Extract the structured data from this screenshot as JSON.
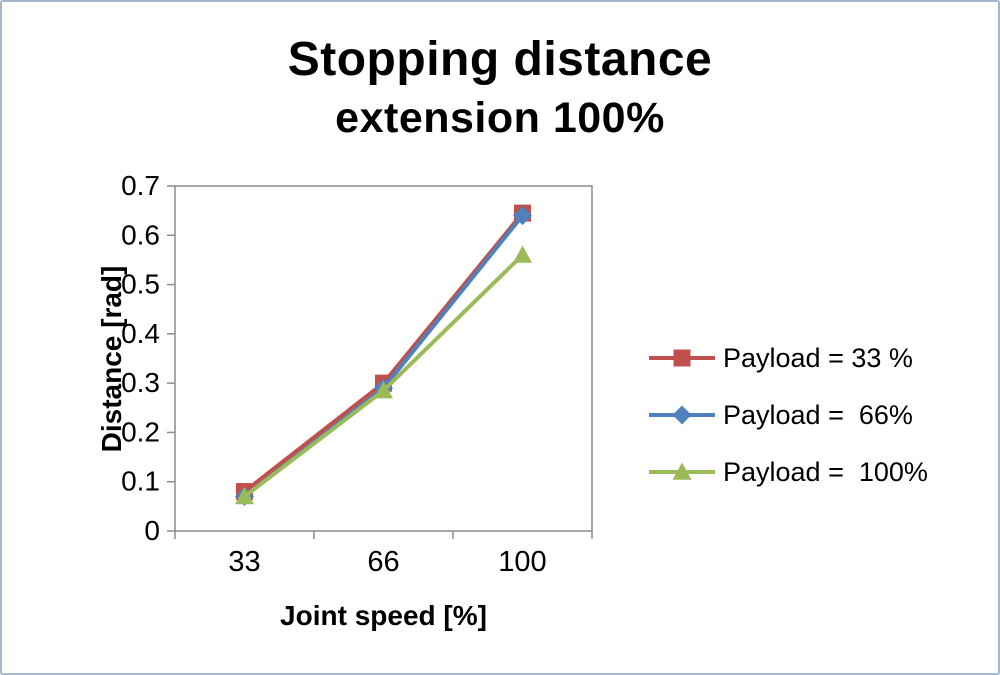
{
  "title": {
    "line1": "Stopping distance",
    "line2": "extension 100%"
  },
  "axes": {
    "y_label": "Distance [rad]",
    "x_label": "Joint speed [%]"
  },
  "colors": {
    "plot_border": "#8c8c8c",
    "tick": "#8c8c8c",
    "text": "#000000",
    "frame_border": "#a3b8cc"
  },
  "chart_data": {
    "type": "line",
    "title": "Stopping distance extension 100%",
    "xlabel": "Joint speed [%]",
    "ylabel": "Distance [rad]",
    "categories": [
      "33",
      "66",
      "100"
    ],
    "ylim": [
      0,
      0.7
    ],
    "yticks": [
      "0",
      "0.1",
      "0.2",
      "0.3",
      "0.4",
      "0.5",
      "0.6",
      "0.7"
    ],
    "grid": false,
    "legend_position": "right",
    "series": [
      {
        "name": "Payload = 33 %",
        "color": "#C0504D",
        "marker": "square",
        "values": [
          0.08,
          0.3,
          0.645
        ]
      },
      {
        "name": "Payload =  66%",
        "color": "#4F81BD",
        "marker": "diamond",
        "values": [
          0.07,
          0.29,
          0.64
        ]
      },
      {
        "name": "Payload =  100%",
        "color": "#9BBB59",
        "marker": "triangle",
        "values": [
          0.07,
          0.285,
          0.56
        ]
      }
    ]
  }
}
